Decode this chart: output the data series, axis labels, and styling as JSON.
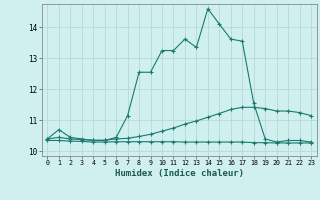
{
  "title": "",
  "xlabel": "Humidex (Indice chaleur)",
  "background_color": "#cff0ee",
  "grid_color": "#b8d8d4",
  "line_color": "#1a7a6e",
  "xlim": [
    -0.5,
    23.5
  ],
  "ylim": [
    9.85,
    14.75
  ],
  "xticks": [
    0,
    1,
    2,
    3,
    4,
    5,
    6,
    7,
    8,
    9,
    10,
    11,
    12,
    13,
    14,
    15,
    16,
    17,
    18,
    19,
    20,
    21,
    22,
    23
  ],
  "yticks": [
    10,
    11,
    12,
    13,
    14
  ],
  "series1_x": [
    0,
    1,
    2,
    3,
    4,
    5,
    6,
    7,
    8,
    9,
    10,
    11,
    12,
    13,
    14,
    15,
    16,
    17,
    18,
    19,
    20,
    21,
    22,
    23
  ],
  "series1_y": [
    10.4,
    10.7,
    10.45,
    10.4,
    10.35,
    10.35,
    10.45,
    11.15,
    12.55,
    12.55,
    13.25,
    13.25,
    13.62,
    13.35,
    14.6,
    14.1,
    13.62,
    13.55,
    11.55,
    10.4,
    10.3,
    10.35,
    10.35,
    10.3
  ],
  "series2_x": [
    0,
    1,
    2,
    3,
    4,
    5,
    6,
    7,
    8,
    9,
    10,
    11,
    12,
    13,
    14,
    15,
    16,
    17,
    18,
    19,
    20,
    21,
    22,
    23
  ],
  "series2_y": [
    10.4,
    10.45,
    10.4,
    10.38,
    10.36,
    10.36,
    10.4,
    10.42,
    10.48,
    10.55,
    10.65,
    10.75,
    10.88,
    10.98,
    11.1,
    11.22,
    11.35,
    11.42,
    11.42,
    11.38,
    11.3,
    11.3,
    11.25,
    11.15
  ],
  "series3_x": [
    0,
    1,
    2,
    3,
    4,
    5,
    6,
    7,
    8,
    9,
    10,
    11,
    12,
    13,
    14,
    15,
    16,
    17,
    18,
    19,
    20,
    21,
    22,
    23
  ],
  "series3_y": [
    10.35,
    10.35,
    10.33,
    10.32,
    10.3,
    10.3,
    10.31,
    10.31,
    10.31,
    10.31,
    10.31,
    10.31,
    10.3,
    10.3,
    10.3,
    10.3,
    10.3,
    10.3,
    10.28,
    10.28,
    10.27,
    10.27,
    10.27,
    10.27
  ]
}
